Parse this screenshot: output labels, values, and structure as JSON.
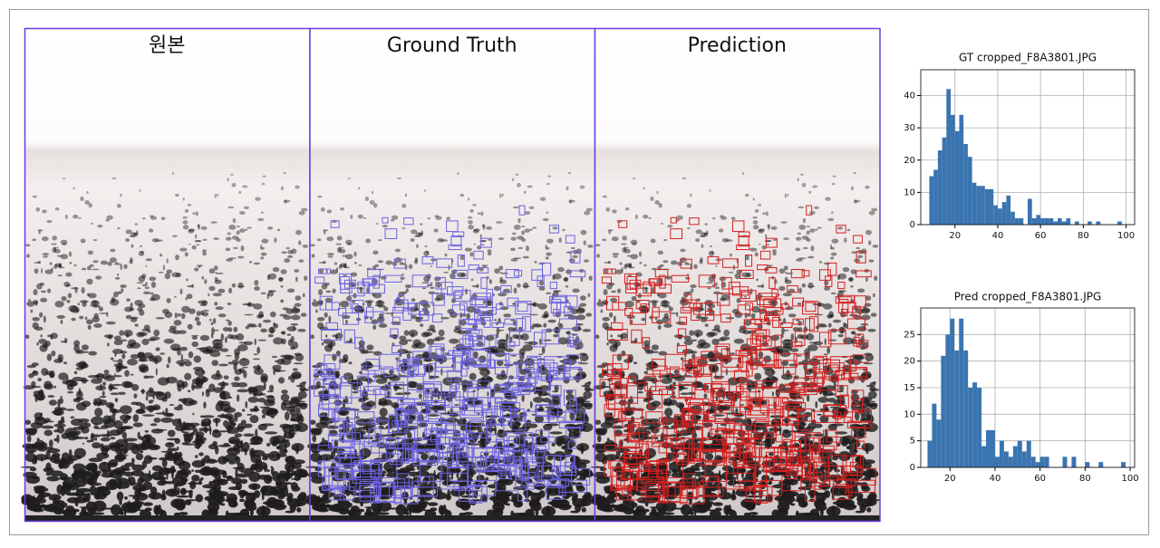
{
  "panels": [
    "원본",
    "Ground Truth",
    "Prediction"
  ],
  "chart_data": [
    {
      "type": "histogram",
      "title": "GT  cropped_F8A3801.JPG",
      "color": "#3a75b0",
      "grid": true,
      "bins": [
        8,
        10,
        12,
        14,
        16,
        18,
        20,
        22,
        24,
        26,
        28,
        30,
        32,
        34,
        36,
        38,
        40,
        42,
        44,
        46,
        48,
        50,
        52,
        54,
        56,
        58,
        60,
        62,
        64,
        66,
        68,
        70,
        72,
        74,
        76,
        78,
        80,
        82,
        84,
        86,
        88,
        90,
        92,
        94,
        96,
        98
      ],
      "values": [
        15,
        17,
        23,
        27,
        42,
        34,
        29,
        34,
        25,
        21,
        13,
        12,
        12,
        11,
        11,
        6,
        5,
        7,
        9,
        4,
        2,
        2,
        0,
        8,
        2,
        3,
        2,
        2,
        2,
        1,
        2,
        1,
        2,
        0,
        1,
        0,
        0,
        1,
        0,
        1,
        0,
        0,
        0,
        0,
        1
      ],
      "xlim": [
        4,
        104
      ],
      "ylim": [
        0,
        48
      ],
      "xticks": [
        20,
        40,
        60,
        80,
        100
      ],
      "yticks": [
        0,
        10,
        20,
        30,
        40
      ]
    },
    {
      "type": "histogram",
      "title": "Pred  cropped_F8A3801.JPG",
      "color": "#3a75b0",
      "grid": true,
      "bins": [
        10,
        12,
        14,
        16,
        18,
        20,
        22,
        24,
        26,
        28,
        30,
        32,
        34,
        36,
        38,
        40,
        42,
        44,
        46,
        48,
        50,
        52,
        54,
        56,
        58,
        60,
        62,
        64,
        66,
        68,
        70,
        72,
        74,
        76,
        78,
        80,
        82,
        84,
        86,
        88,
        90,
        92,
        94,
        96,
        98
      ],
      "values": [
        5,
        12,
        9,
        21,
        25,
        28,
        22,
        28,
        22,
        15,
        16,
        15,
        4,
        7,
        7,
        2,
        5,
        3,
        2,
        4,
        5,
        3,
        5,
        2,
        1,
        2,
        2,
        0,
        0,
        0,
        2,
        0,
        2,
        0,
        0,
        1,
        0,
        0,
        1,
        0,
        0,
        0,
        0,
        1
      ],
      "xlim": [
        7,
        102
      ],
      "ylim": [
        0,
        30
      ],
      "xticks": [
        20,
        40,
        60,
        80,
        100
      ],
      "yticks": [
        0,
        5,
        10,
        15,
        20,
        25
      ]
    }
  ]
}
